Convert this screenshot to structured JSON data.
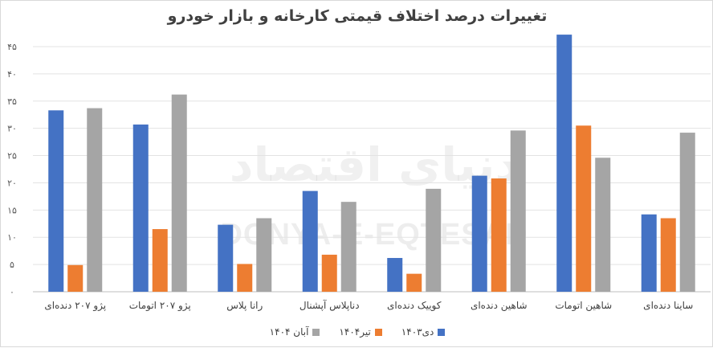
{
  "chart_data": {
    "type": "bar",
    "title": "تغییرات درصد اختلاف قیمتی کارخانه و بازار خودرو",
    "categories": [
      "ساینا دنده‌ای",
      "شاهین اتومات",
      "شاهین دنده‌ای",
      "کوییک دنده‌ای",
      "دناپلاس آپشنال",
      "رانا پلاس",
      "پژو ۲۰۷ اتومات",
      "پژو ۲۰۷ دنده‌ای"
    ],
    "series": [
      {
        "name": "دی۱۴۰۳",
        "color": "#4472c4",
        "values": [
          14.2,
          47.2,
          21.3,
          6.2,
          18.5,
          12.3,
          30.7,
          33.3
        ]
      },
      {
        "name": "تیر۱۴۰۴",
        "color": "#ed7d31",
        "values": [
          13.5,
          30.5,
          20.8,
          3.3,
          6.8,
          5.1,
          11.5,
          4.9
        ]
      },
      {
        "name": "آبان ۱۴۰۴",
        "color": "#a5a5a5",
        "values": [
          29.2,
          24.6,
          29.6,
          18.9,
          16.5,
          13.5,
          36.2,
          33.7
        ]
      }
    ],
    "ylim": [
      0,
      45
    ],
    "yticks": [
      0,
      5,
      10,
      15,
      20,
      25,
      30,
      35,
      40,
      45
    ],
    "ytick_labels": [
      "۰",
      "۵",
      "۱۰",
      "۱۵",
      "۲۰",
      "۲۵",
      "۳۰",
      "۳۵",
      "۴۰",
      "۴۵"
    ],
    "grid": true,
    "legend_position": "bottom",
    "category_order": "right-to-left"
  },
  "watermark": {
    "text": "DONYA-E-EQTESAD",
    "script": "دنیای اقتصاد"
  }
}
